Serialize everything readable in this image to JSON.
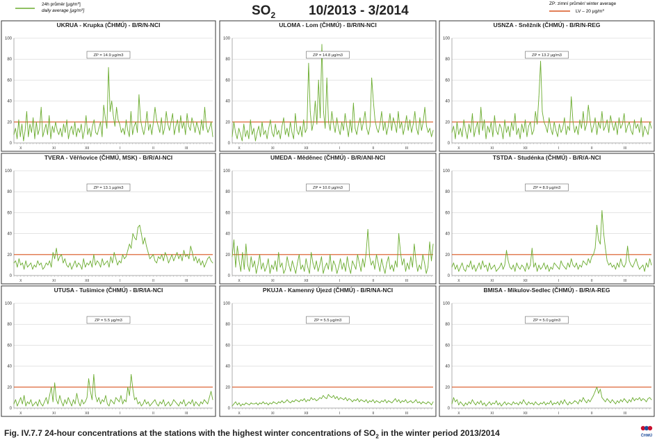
{
  "header": {
    "legend_daily_cz": "24h průměr [µg/m",
    "legend_daily_cz_sup": "3",
    "legend_daily_cz_end": "]",
    "legend_daily_en": "daily average [µg/m",
    "legend_daily_en_sup": "3",
    "legend_daily_en_end": "]",
    "title_main": "SO",
    "title_sub": "2",
    "title_period": "10/2013 - 3/2014",
    "legend_zp": "ZP: zimní průměr/ winter average",
    "legend_lv": "LV – 20 µg/m",
    "legend_lv_sup": "3"
  },
  "colors": {
    "series": "#6aab2e",
    "limit": "#d9531e",
    "frame": "#333333",
    "grid": "#bbbbbb"
  },
  "caption": {
    "prefix": "Fig. IV.7.7  24-hour concentrations at the stations with the highest winter concentrations of SO",
    "sub": "2",
    "suffix": " in the winter period 2013/2014"
  },
  "logo_text": "ČHMÚ",
  "chart_data": [
    {
      "type": "line",
      "title": "UKRUA - Krupka (ČHMÚ) - B/R/N-NCI",
      "annotation": "ZP = 14.9 µg/m3",
      "ylim": [
        0,
        100
      ],
      "yticks": [
        0,
        20,
        40,
        60,
        80,
        100
      ],
      "months": [
        "X",
        "XI",
        "XII",
        "I",
        "II",
        "III"
      ],
      "limit": 20,
      "values": [
        8,
        14,
        4,
        22,
        6,
        18,
        2,
        12,
        30,
        6,
        18,
        10,
        24,
        4,
        20,
        8,
        14,
        34,
        6,
        12,
        18,
        8,
        26,
        4,
        16,
        10,
        20,
        12,
        8,
        14,
        6,
        18,
        10,
        22,
        4,
        12,
        16,
        8,
        20,
        6,
        14,
        10,
        18,
        4,
        12,
        26,
        8,
        14,
        6,
        16,
        22,
        10,
        8,
        14,
        20,
        6,
        36,
        24,
        14,
        72,
        30,
        40,
        26,
        16,
        34,
        22,
        18,
        10,
        14,
        8,
        22,
        12,
        6,
        30,
        8,
        16,
        20,
        10,
        46,
        22,
        14,
        8,
        16,
        30,
        12,
        18,
        8,
        20,
        34,
        22,
        16,
        10,
        24,
        8,
        14,
        30,
        18,
        12,
        20,
        28,
        8,
        16,
        22,
        10,
        26,
        14,
        20,
        8,
        28,
        16,
        12,
        24,
        18,
        10,
        20,
        14,
        8,
        22,
        12,
        34,
        16,
        10,
        14,
        20,
        6
      ]
    },
    {
      "type": "line",
      "title": "ULOMA - Lom (ČHMÚ) - B/R/IN-NCI",
      "annotation": "ZP = 14.8 µg/m3",
      "ylim": [
        0,
        100
      ],
      "yticks": [
        0,
        20,
        40,
        60,
        80,
        100
      ],
      "months": [
        "X",
        "XI",
        "XII",
        "I",
        "II",
        "III"
      ],
      "limit": 20,
      "values": [
        6,
        20,
        10,
        4,
        14,
        8,
        2,
        18,
        6,
        12,
        4,
        22,
        8,
        14,
        2,
        10,
        16,
        6,
        20,
        8,
        12,
        4,
        14,
        22,
        10,
        6,
        18,
        8,
        12,
        4,
        16,
        24,
        8,
        14,
        6,
        20,
        10,
        4,
        28,
        12,
        8,
        16,
        6,
        22,
        10,
        14,
        76,
        30,
        12,
        20,
        40,
        18,
        60,
        24,
        94,
        30,
        14,
        62,
        20,
        12,
        30,
        18,
        10,
        24,
        14,
        8,
        20,
        12,
        28,
        16,
        6,
        22,
        10,
        38,
        14,
        8,
        18,
        24,
        12,
        20,
        30,
        14,
        8,
        16,
        62,
        40,
        22,
        14,
        10,
        18,
        30,
        12,
        20,
        8,
        16,
        28,
        12,
        24,
        18,
        10,
        30,
        14,
        20,
        8,
        16,
        26,
        12,
        22,
        10,
        18,
        30,
        14,
        8,
        24,
        12,
        20,
        34,
        16,
        10,
        14,
        6,
        12
      ]
    },
    {
      "type": "line",
      "title": "USNZA - Sněžník (ČHMÚ) - B/R/N-REG",
      "annotation": "ZP = 13.2 µg/m3",
      "ylim": [
        0,
        100
      ],
      "yticks": [
        0,
        20,
        40,
        60,
        80,
        100
      ],
      "months": [
        "X",
        "XI",
        "XII",
        "I",
        "II",
        "III"
      ],
      "limit": 20,
      "values": [
        10,
        16,
        4,
        20,
        8,
        14,
        6,
        22,
        12,
        4,
        18,
        10,
        28,
        6,
        14,
        20,
        8,
        34,
        12,
        22,
        4,
        16,
        10,
        20,
        6,
        26,
        12,
        8,
        18,
        14,
        4,
        22,
        10,
        16,
        6,
        20,
        12,
        28,
        8,
        14,
        4,
        18,
        10,
        22,
        6,
        16,
        20,
        8,
        12,
        30,
        18,
        44,
        78,
        30,
        20,
        16,
        10,
        24,
        14,
        8,
        20,
        12,
        6,
        18,
        10,
        14,
        24,
        8,
        16,
        12,
        44,
        20,
        10,
        16,
        8,
        22,
        14,
        30,
        12,
        18,
        36,
        22,
        10,
        16,
        24,
        8,
        20,
        14,
        30,
        12,
        16,
        22,
        10,
        26,
        18,
        12,
        20,
        8,
        24,
        14,
        18,
        28,
        10,
        16,
        20,
        12,
        8,
        22,
        14,
        18,
        10,
        24,
        6,
        16,
        12,
        8,
        20,
        14
      ]
    },
    {
      "type": "line",
      "title": "TVERA - Věřňovice (ČHMÚ, MSK) - B/R/AI-NCI",
      "annotation": "ZP = 13.1 µg/m3",
      "ylim": [
        0,
        100
      ],
      "yticks": [
        0,
        20,
        40,
        60,
        80,
        100
      ],
      "months": [
        "X",
        "XI",
        "XII",
        "I",
        "II",
        "III"
      ],
      "limit": 20,
      "values": [
        12,
        14,
        8,
        16,
        10,
        12,
        6,
        14,
        8,
        10,
        12,
        6,
        10,
        8,
        14,
        10,
        12,
        6,
        8,
        12,
        10,
        14,
        8,
        22,
        16,
        26,
        14,
        18,
        20,
        12,
        16,
        10,
        8,
        12,
        6,
        10,
        14,
        8,
        12,
        10,
        6,
        16,
        8,
        12,
        10,
        14,
        8,
        20,
        10,
        14,
        12,
        8,
        16,
        10,
        12,
        14,
        8,
        18,
        12,
        22,
        16,
        10,
        14,
        12,
        20,
        16,
        18,
        24,
        30,
        26,
        40,
        36,
        34,
        46,
        48,
        40,
        30,
        36,
        28,
        22,
        16,
        18,
        20,
        14,
        12,
        18,
        16,
        20,
        14,
        22,
        18,
        12,
        16,
        20,
        14,
        18,
        22,
        16,
        20,
        14,
        24,
        18,
        20,
        16,
        28,
        22,
        14,
        18,
        12,
        16,
        10,
        14,
        8,
        12,
        16,
        18,
        14,
        12
      ]
    },
    {
      "type": "line",
      "title": "UMEDA - Měděnec (ČHMÚ) - B/R/ANI-NCI",
      "annotation": "ZP = 10.0 µg/m3",
      "ylim": [
        0,
        100
      ],
      "yticks": [
        0,
        20,
        40,
        60,
        80,
        100
      ],
      "months": [
        "X",
        "XI",
        "XII",
        "I",
        "II",
        "III"
      ],
      "limit": 20,
      "values": [
        18,
        34,
        8,
        28,
        14,
        4,
        22,
        6,
        30,
        10,
        4,
        18,
        8,
        14,
        2,
        10,
        20,
        6,
        12,
        4,
        8,
        16,
        2,
        10,
        6,
        14,
        4,
        22,
        8,
        12,
        2,
        6,
        18,
        10,
        4,
        14,
        8,
        2,
        12,
        20,
        6,
        10,
        4,
        16,
        8,
        2,
        22,
        12,
        6,
        14,
        4,
        10,
        18,
        2,
        8,
        12,
        6,
        20,
        4,
        14,
        10,
        2,
        8,
        16,
        6,
        12,
        4,
        18,
        8,
        2,
        14,
        10,
        6,
        20,
        12,
        4,
        16,
        8,
        22,
        44,
        18,
        10,
        14,
        6,
        20,
        12,
        4,
        16,
        8,
        2,
        12,
        18,
        6,
        10,
        4,
        14,
        8,
        40,
        22,
        10,
        16,
        4,
        12,
        6,
        18,
        8,
        30,
        14,
        4,
        10,
        6,
        20,
        12,
        2,
        8,
        32,
        14,
        30
      ]
    },
    {
      "type": "line",
      "title": "TSTDA - Studénka (ČHMÚ) - B/R/A-NCI",
      "annotation": "ZP = 8.9 µg/m3",
      "ylim": [
        0,
        100
      ],
      "yticks": [
        0,
        20,
        40,
        60,
        80,
        100
      ],
      "months": [
        "X",
        "XI",
        "XII",
        "I",
        "II",
        "III"
      ],
      "limit": 20,
      "values": [
        8,
        12,
        6,
        10,
        4,
        8,
        12,
        6,
        4,
        10,
        8,
        14,
        6,
        10,
        4,
        8,
        12,
        6,
        14,
        8,
        10,
        4,
        12,
        6,
        8,
        10,
        4,
        6,
        8,
        12,
        6,
        10,
        24,
        14,
        8,
        6,
        10,
        4,
        12,
        8,
        6,
        10,
        8,
        4,
        12,
        6,
        10,
        26,
        8,
        12,
        4,
        10,
        6,
        8,
        12,
        6,
        10,
        4,
        8,
        6,
        12,
        10,
        8,
        6,
        14,
        10,
        8,
        6,
        12,
        8,
        16,
        10,
        8,
        12,
        6,
        10,
        8,
        14,
        12,
        10,
        16,
        12,
        18,
        20,
        26,
        48,
        34,
        30,
        62,
        40,
        26,
        14,
        10,
        12,
        8,
        10,
        6,
        12,
        8,
        16,
        10,
        8,
        12,
        28,
        14,
        10,
        8,
        12,
        16,
        10,
        6,
        8,
        10,
        4,
        12,
        8,
        16,
        10
      ]
    },
    {
      "type": "line",
      "title": "UTUSA - Tušimice (ČHMÚ) - B/R/IA-NCI",
      "annotation": "ZP = 5.5 µg/m3",
      "ylim": [
        0,
        100
      ],
      "yticks": [
        0,
        20,
        40,
        60,
        80,
        100
      ],
      "months": [
        "X",
        "XI",
        "XII",
        "I",
        "II",
        "III"
      ],
      "limit": 20,
      "values": [
        4,
        8,
        2,
        6,
        10,
        4,
        12,
        2,
        6,
        4,
        8,
        2,
        4,
        6,
        2,
        8,
        4,
        2,
        6,
        10,
        4,
        12,
        20,
        6,
        24,
        8,
        4,
        12,
        6,
        2,
        8,
        4,
        10,
        6,
        2,
        8,
        4,
        14,
        6,
        2,
        8,
        4,
        6,
        10,
        28,
        16,
        8,
        32,
        12,
        6,
        10,
        4,
        8,
        6,
        12,
        4,
        2,
        8,
        6,
        4,
        10,
        8,
        6,
        12,
        4,
        8,
        6,
        20,
        12,
        32,
        18,
        8,
        10,
        4,
        6,
        2,
        4,
        8,
        4,
        6,
        2,
        4,
        6,
        8,
        4,
        2,
        6,
        4,
        8,
        2,
        4,
        6,
        2,
        4,
        8,
        6,
        4,
        2,
        6,
        4,
        8,
        2,
        4,
        6,
        4,
        8,
        2,
        6,
        4,
        2,
        6,
        4,
        8,
        6,
        4,
        10,
        16,
        8
      ]
    },
    {
      "type": "line",
      "title": "PKUJA - Kamenný Újezd (ČHMÚ) - B/R/NA-NCI",
      "annotation": "ZP = 5.5 µg/m3",
      "ylim": [
        0,
        100
      ],
      "yticks": [
        0,
        20,
        40,
        60,
        80,
        100
      ],
      "months": [
        "X",
        "XI",
        "XII",
        "I",
        "II",
        "III"
      ],
      "limit": 20,
      "values": [
        2,
        4,
        6,
        3,
        5,
        2,
        4,
        3,
        5,
        4,
        3,
        5,
        4,
        4,
        5,
        3,
        5,
        4,
        6,
        4,
        5,
        3,
        5,
        4,
        6,
        5,
        4,
        6,
        5,
        7,
        5,
        6,
        8,
        6,
        5,
        7,
        6,
        8,
        7,
        6,
        8,
        7,
        9,
        6,
        8,
        7,
        10,
        8,
        9,
        7,
        8,
        10,
        9,
        12,
        10,
        9,
        13,
        11,
        10,
        12,
        9,
        11,
        8,
        10,
        9,
        8,
        10,
        7,
        9,
        8,
        6,
        8,
        7,
        9,
        6,
        8,
        7,
        6,
        8,
        5,
        7,
        6,
        8,
        5,
        7,
        6,
        5,
        7,
        6,
        8,
        5,
        7,
        6,
        5,
        7,
        9,
        6,
        8,
        5,
        7,
        6,
        8,
        5,
        6,
        7,
        5,
        6,
        8,
        5,
        6,
        4,
        6,
        5,
        4,
        6,
        5,
        3,
        6
      ]
    },
    {
      "type": "line",
      "title": "BMISA - Mikulov-Sedlec (ČHMÚ) - B/R/A-REG",
      "annotation": "ZP = 5.0 µg/m3",
      "ylim": [
        0,
        100
      ],
      "yticks": [
        0,
        20,
        40,
        60,
        80,
        100
      ],
      "months": [
        "X",
        "XI",
        "XII",
        "I",
        "II",
        "III"
      ],
      "limit": 20,
      "values": [
        4,
        10,
        6,
        8,
        3,
        6,
        4,
        2,
        5,
        3,
        6,
        4,
        8,
        5,
        3,
        6,
        4,
        7,
        3,
        5,
        2,
        4,
        6,
        3,
        5,
        4,
        7,
        3,
        5,
        2,
        4,
        6,
        3,
        5,
        4,
        3,
        6,
        4,
        5,
        3,
        6,
        4,
        8,
        5,
        3,
        6,
        4,
        5,
        3,
        6,
        4,
        3,
        5,
        4,
        6,
        3,
        5,
        4,
        7,
        3,
        5,
        4,
        6,
        3,
        7,
        4,
        8,
        5,
        3,
        6,
        4,
        5,
        7,
        6,
        4,
        8,
        6,
        10,
        7,
        5,
        8,
        6,
        9,
        12,
        16,
        20,
        14,
        18,
        10,
        8,
        6,
        9,
        7,
        5,
        8,
        6,
        4,
        7,
        5,
        8,
        6,
        9,
        7,
        5,
        8,
        6,
        10,
        7,
        9,
        8,
        10,
        7,
        9,
        8,
        6,
        9,
        10,
        8
      ]
    }
  ]
}
